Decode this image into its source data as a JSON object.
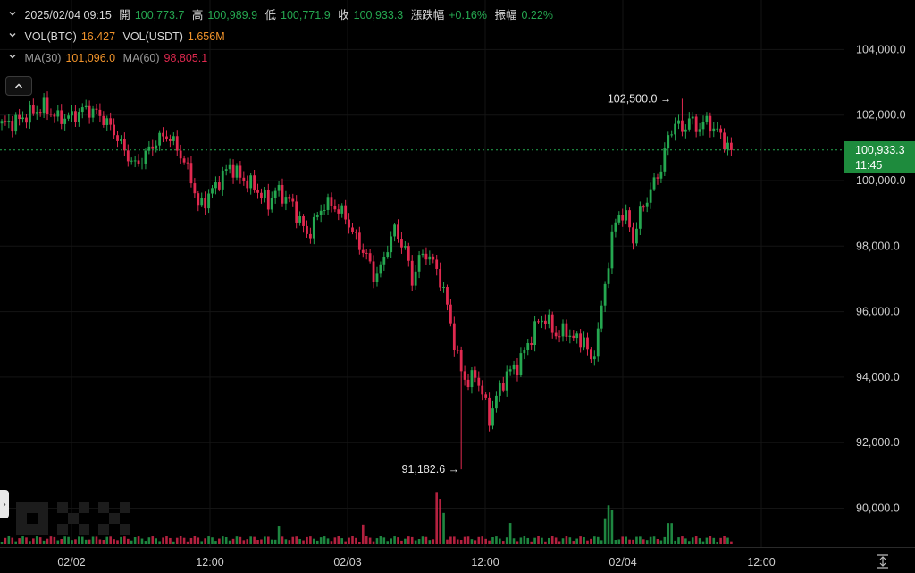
{
  "header": {
    "datetime": "2025/02/04 09:15",
    "open_label": "開",
    "open": "100,773.7",
    "high_label": "高",
    "high": "100,989.9",
    "low_label": "低",
    "low": "100,771.9",
    "close_label": "收",
    "close": "100,933.3",
    "change_label": "漲跌幅",
    "change": "+0.16%",
    "amplitude_label": "振幅",
    "amplitude": "0.22%"
  },
  "volume": {
    "btc_label": "VOL(BTC)",
    "btc": "16.427",
    "usdt_label": "VOL(USDT)",
    "usdt": "1.656M"
  },
  "ma": {
    "ma30_label": "MA(30)",
    "ma30": "101,096.0",
    "ma60_label": "MA(60)",
    "ma60": "98,805.1"
  },
  "current_price": {
    "value": "100,933.3",
    "countdown": "11:45"
  },
  "colors": {
    "up": "#25a750",
    "down": "#e0294f",
    "ma30": "#f0932b",
    "ma60": "#e0294f",
    "background": "#000000"
  },
  "chart_data": {
    "type": "candlestick",
    "y_axis": {
      "ticks": [
        90000,
        92000,
        94000,
        96000,
        98000,
        100000,
        102000,
        104000
      ],
      "tick_labels": [
        "90,000.0",
        "92,000.0",
        "94,000.0",
        "96,000.0",
        "98,000.0",
        "100,000.0",
        "102,000.0",
        "104,000.0"
      ]
    },
    "x_axis": {
      "tick_labels": [
        "02/02",
        "12:00",
        "02/03",
        "12:00",
        "02/04",
        "12:00"
      ]
    },
    "annotations": {
      "high": 102500.0,
      "high_label": "102,500.0",
      "low": 91182.6,
      "low_label": "91,182.6"
    },
    "last_price": 100933.3,
    "close_path": [
      [
        0,
        101700
      ],
      [
        4,
        101800
      ],
      [
        8,
        102050
      ],
      [
        12,
        102250
      ],
      [
        16,
        101900
      ],
      [
        20,
        101950
      ],
      [
        24,
        102200
      ],
      [
        28,
        102000
      ],
      [
        32,
        101500
      ],
      [
        35,
        100900
      ],
      [
        38,
        100450
      ],
      [
        41,
        100800
      ],
      [
        44,
        101200
      ],
      [
        47,
        101400
      ],
      [
        50,
        101000
      ],
      [
        54,
        100100
      ],
      [
        56,
        99200
      ],
      [
        58,
        99400
      ],
      [
        62,
        100000
      ],
      [
        65,
        100450
      ],
      [
        68,
        100100
      ],
      [
        72,
        99800
      ],
      [
        76,
        99300
      ],
      [
        78,
        99700
      ],
      [
        82,
        99400
      ],
      [
        85,
        98800
      ],
      [
        87,
        98300
      ],
      [
        89,
        98700
      ],
      [
        92,
        99300
      ],
      [
        95,
        99200
      ],
      [
        98,
        98900
      ],
      [
        101,
        98200
      ],
      [
        104,
        97700
      ],
      [
        106,
        97100
      ],
      [
        108,
        97300
      ],
      [
        110,
        98000
      ],
      [
        112,
        98500
      ],
      [
        115,
        97900
      ],
      [
        117,
        96950
      ],
      [
        119,
        97600
      ],
      [
        121,
        97800
      ],
      [
        124,
        97300
      ],
      [
        126,
        96600
      ],
      [
        128,
        95700
      ],
      [
        129,
        95000
      ],
      [
        131,
        94200
      ],
      [
        133,
        93800
      ],
      [
        135,
        94100
      ],
      [
        137,
        93500
      ],
      [
        139,
        92750
      ],
      [
        141,
        93400
      ],
      [
        144,
        94100
      ],
      [
        147,
        94350
      ],
      [
        150,
        95000
      ],
      [
        153,
        95700
      ],
      [
        155,
        95800
      ],
      [
        158,
        95300
      ],
      [
        161,
        95400
      ],
      [
        164,
        95100
      ],
      [
        166,
        95200
      ],
      [
        168,
        94400
      ],
      [
        170,
        95400
      ],
      [
        172,
        96800
      ],
      [
        174,
        98300
      ],
      [
        176,
        99000
      ],
      [
        178,
        98900
      ],
      [
        180,
        98200
      ],
      [
        182,
        99000
      ],
      [
        185,
        99700
      ],
      [
        188,
        100400
      ],
      [
        190,
        101300
      ],
      [
        192,
        101800
      ],
      [
        194,
        101500
      ],
      [
        196,
        101900
      ],
      [
        198,
        101600
      ],
      [
        201,
        101800
      ],
      [
        204,
        101500
      ],
      [
        206,
        101200
      ],
      [
        208,
        100930
      ]
    ],
    "volume_spikes": [
      [
        124,
        1.0
      ],
      [
        125,
        0.85
      ],
      [
        126,
        0.6
      ],
      [
        172,
        0.45
      ],
      [
        173,
        0.7
      ],
      [
        174,
        0.6
      ],
      [
        103,
        0.3
      ],
      [
        79,
        0.25
      ],
      [
        145,
        0.3
      ],
      [
        190,
        0.3
      ],
      [
        191,
        0.35
      ]
    ]
  }
}
